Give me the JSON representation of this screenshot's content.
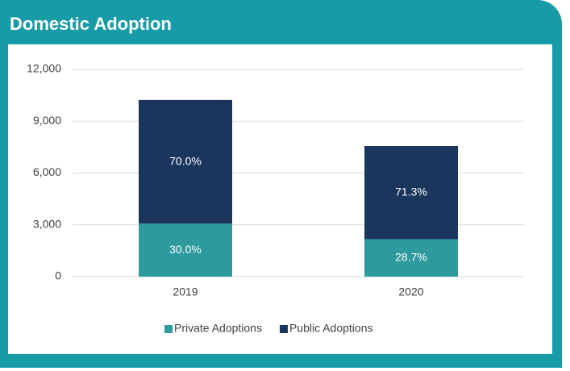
{
  "chart_data": {
    "type": "stacked_bar",
    "title": "Domestic Adoption",
    "categories": [
      "2019",
      "2020"
    ],
    "series": [
      {
        "name": "Private Adoptions",
        "color": "#2e9a9e",
        "values": [
          3070,
          2170
        ],
        "labels": [
          "30.0%",
          "28.7%"
        ]
      },
      {
        "name": "Public Adoptions",
        "color": "#1b365d",
        "values": [
          7160,
          5395
        ],
        "labels": [
          "70.0%",
          "71.3%"
        ]
      }
    ],
    "ylim": [
      0,
      12000
    ],
    "yticks": [
      0,
      {
        "value": 3000,
        "label": "3,000"
      },
      {
        "value": 6000,
        "label": "6,000"
      },
      {
        "value": 9000,
        "label": "9,000"
      },
      {
        "value": 12000,
        "label": "12,000"
      }
    ],
    "grid": true,
    "legend": "bottom"
  }
}
